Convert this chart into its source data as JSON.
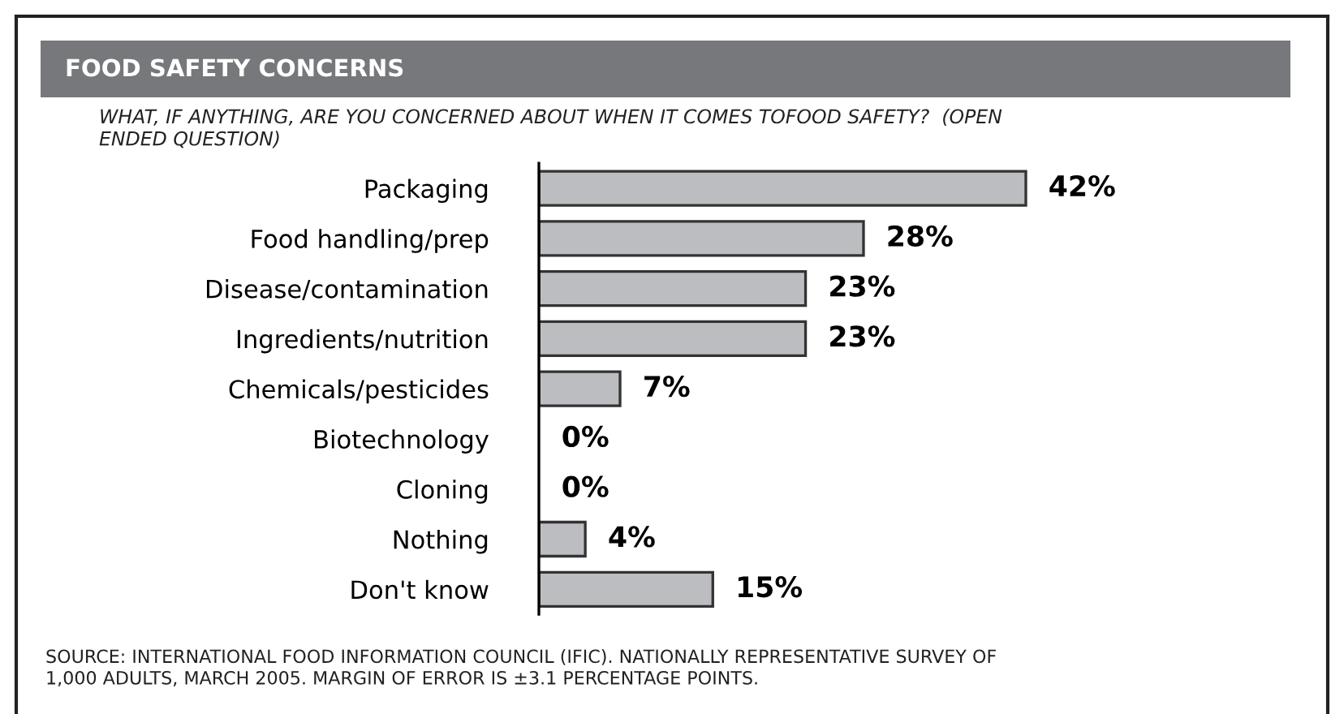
{
  "chart_data": {
    "type": "bar",
    "orientation": "horizontal",
    "title": "FOOD SAFETY CONCERNS",
    "subtitle": "WHAT, IF ANYTHING, ARE YOU CONCERNED ABOUT WHEN IT COMES TOFOOD SAFETY?  (OPEN\nENDED QUESTION)",
    "categories": [
      "Packaging",
      "Food handling/prep",
      "Disease/contamination",
      "Ingredients/nutrition",
      "Chemicals/pesticides",
      "Biotechnology",
      "Cloning",
      "Nothing",
      "Don't know"
    ],
    "values": [
      42,
      28,
      23,
      23,
      7,
      0,
      0,
      4,
      15
    ],
    "value_labels": [
      "42%",
      "28%",
      "23%",
      "23%",
      "7%",
      "0%",
      "0%",
      "4%",
      "15%"
    ],
    "color": "#bcbdc0",
    "grid": false,
    "legend": false,
    "annotations": [
      "SOURCE: INTERNATIONAL FOOD INFORMATION COUNCIL (IFIC). NATIONALLY REPRESENTATIVE SURVEY OF\n1,000 ADULTS, MARCH 2005. MARGIN OF ERROR IS ±3.1 PERCENTAGE POINTS."
    ]
  }
}
